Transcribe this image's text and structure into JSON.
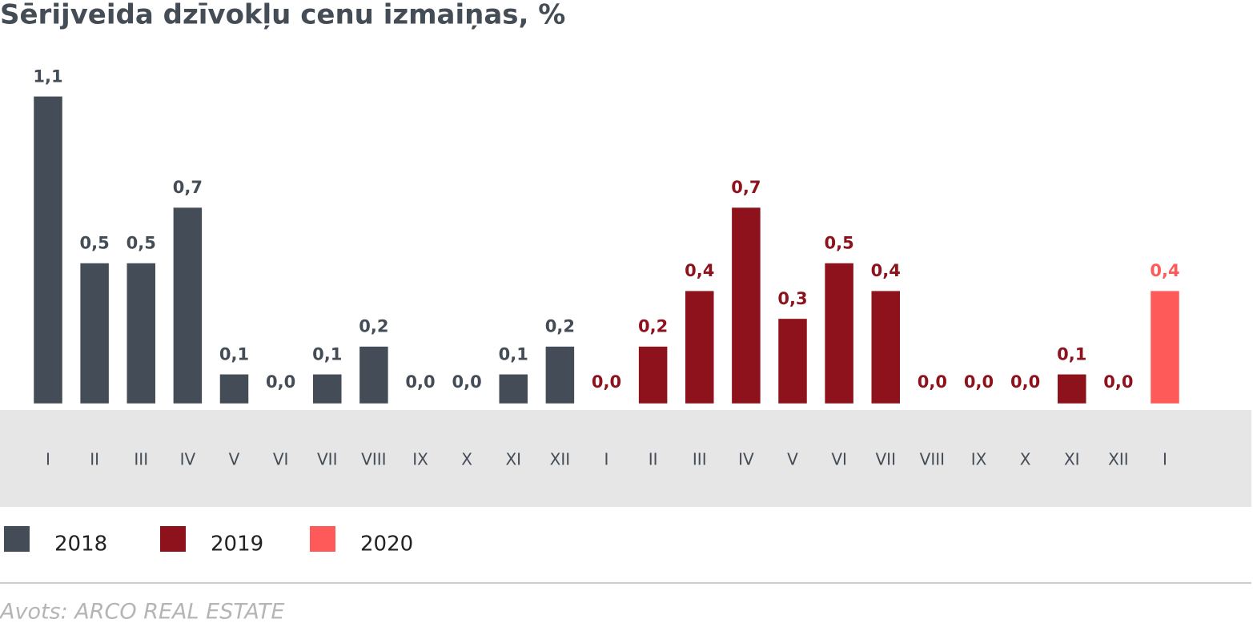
{
  "chart_data": {
    "type": "bar",
    "title": "Sērijveida dzīvokļu cenu izmaiņas, %",
    "source": "Avots: ARCO REAL ESTATE",
    "categories": [
      "I",
      "II",
      "III",
      "IV",
      "V",
      "VI",
      "VII",
      "VIII",
      "IX",
      "X",
      "XI",
      "XII",
      "I",
      "II",
      "III",
      "IV",
      "V",
      "VI",
      "VII",
      "VIII",
      "IX",
      "X",
      "XI",
      "XII",
      "I"
    ],
    "series": [
      {
        "name": "2018",
        "color": "#444d57",
        "values": [
          1.1,
          0.5,
          0.5,
          0.7,
          0.1,
          0,
          0.1,
          0.2,
          0,
          0,
          0.1,
          0.2,
          null,
          null,
          null,
          null,
          null,
          null,
          null,
          null,
          null,
          null,
          null,
          null,
          null
        ],
        "value_labels": [
          "1,1",
          "0,5",
          "0,5",
          "0,7",
          "0,1",
          "0,0",
          "0,1",
          "0,2",
          "0,0",
          "0,0",
          "0,1",
          "0,2",
          null,
          null,
          null,
          null,
          null,
          null,
          null,
          null,
          null,
          null,
          null,
          null,
          null
        ]
      },
      {
        "name": "2019",
        "color": "#8e121c",
        "values": [
          null,
          null,
          null,
          null,
          null,
          null,
          null,
          null,
          null,
          null,
          null,
          null,
          0,
          0.2,
          0.4,
          0.7,
          0.3,
          0.5,
          0.4,
          0,
          0,
          0,
          0.1,
          0,
          null
        ],
        "value_labels": [
          null,
          null,
          null,
          null,
          null,
          null,
          null,
          null,
          null,
          null,
          null,
          null,
          "0,0",
          "0,2",
          "0,4",
          "0,7",
          "0,3",
          "0,5",
          "0,4",
          "0,0",
          "0,0",
          "0,0",
          "0,1",
          "0,0",
          null
        ]
      },
      {
        "name": "2020",
        "color": "#ff5a5a",
        "values": [
          null,
          null,
          null,
          null,
          null,
          null,
          null,
          null,
          null,
          null,
          null,
          null,
          null,
          null,
          null,
          null,
          null,
          null,
          null,
          null,
          null,
          null,
          null,
          null,
          0.4
        ],
        "value_labels": [
          null,
          null,
          null,
          null,
          null,
          null,
          null,
          null,
          null,
          null,
          null,
          null,
          null,
          null,
          null,
          null,
          null,
          null,
          null,
          null,
          null,
          null,
          null,
          null,
          "0,4"
        ]
      }
    ]
  }
}
